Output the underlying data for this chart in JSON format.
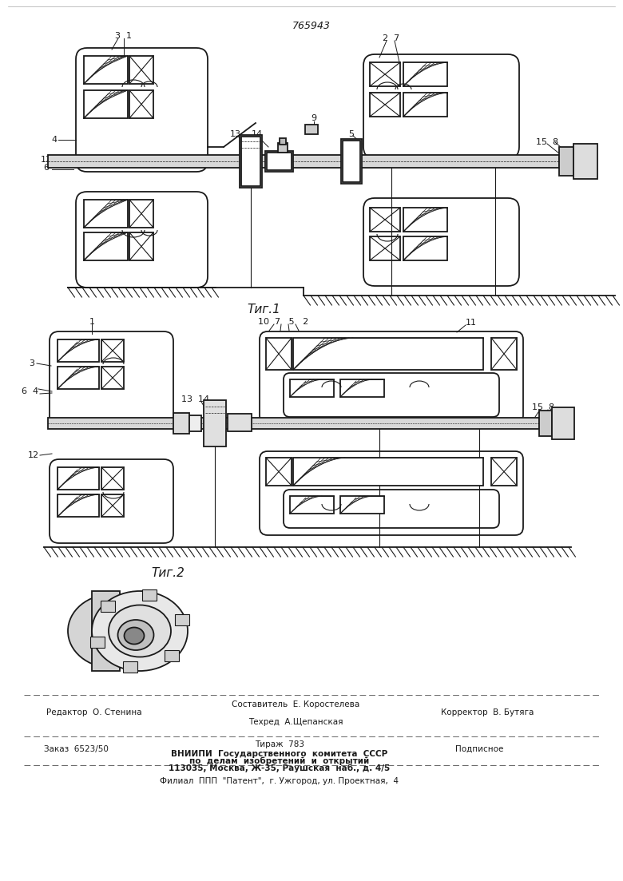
{
  "patent_number": "765943",
  "fig1_caption": "Τиг.1",
  "fig2_caption": "Τиг.2",
  "bg_color": "#ffffff",
  "line_color": "#1a1a1a",
  "footer": {
    "editor": "Редактор  О. Стенина",
    "composer": "Составитель  Е. Коростелева",
    "techred": "Техред  А.Щепанская",
    "corrector": "Корректор  В. Бутяга",
    "order": "Заказ  6523/50",
    "tirazh": "Тираж  783",
    "podpisnoe": "Подписное",
    "org1": "ВНИИПИ  Государственного  комитета  СССР",
    "org2": "по  делам  изобретений  и  открытий",
    "org3": "113035, Москва, Ж-35, Раушская  наб., д. 4/5",
    "filial": "Филиал  ППП  \"Патент\",  г. Ужгород, ул. Проектная,  4"
  }
}
